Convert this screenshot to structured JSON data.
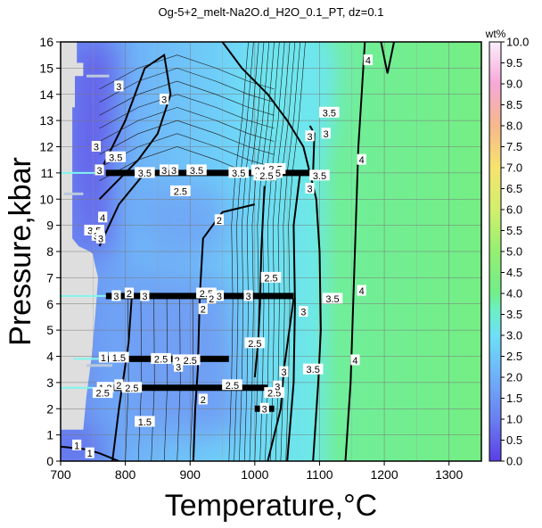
{
  "chart_data": {
    "type": "heatmap",
    "title": "Og-5+2_melt-Na2O.d_H2O_0.1_PT, dz=0.1",
    "xlabel": "Temperature,°C",
    "ylabel": "Pressure,kbar",
    "xlim": [
      700,
      1350
    ],
    "ylim": [
      0,
      16
    ],
    "x_ticks": [
      700,
      800,
      900,
      1000,
      1100,
      1200,
      1300
    ],
    "y_ticks": [
      0,
      1,
      2,
      3,
      4,
      5,
      6,
      7,
      8,
      9,
      10,
      11,
      12,
      13,
      14,
      15,
      16
    ],
    "colorbar": {
      "label": "wt%",
      "range": [
        0.0,
        10.0
      ],
      "ticks": [
        "0.0",
        "0.5",
        "1.0",
        "1.5",
        "2.0",
        "2.5",
        "3.0",
        "3.5",
        "4.0",
        "4.5",
        "5.0",
        "5.5",
        "6.0",
        "6.5",
        "7.0",
        "7.5",
        "8.0",
        "8.5",
        "9.0",
        "9.5",
        "10.0"
      ],
      "stops": [
        {
          "v": 0.0,
          "color": "#5b3fe6"
        },
        {
          "v": 1.0,
          "color": "#6a7ff0"
        },
        {
          "v": 2.0,
          "color": "#6fb0f8"
        },
        {
          "v": 3.0,
          "color": "#6ee0f6"
        },
        {
          "v": 3.6,
          "color": "#6cefc4"
        },
        {
          "v": 4.0,
          "color": "#72ee8a"
        },
        {
          "v": 5.0,
          "color": "#95ef72"
        },
        {
          "v": 6.0,
          "color": "#d2ef6e"
        },
        {
          "v": 7.0,
          "color": "#f6e36e"
        },
        {
          "v": 8.0,
          "color": "#f6b88c"
        },
        {
          "v": 9.0,
          "color": "#f6a8d6"
        },
        {
          "v": 10.0,
          "color": "#fbeefc"
        }
      ]
    },
    "grid": true,
    "contour_labels": [
      {
        "x": 725,
        "y": 0.6,
        "text": "1"
      },
      {
        "x": 790,
        "y": 14.3,
        "text": "3"
      },
      {
        "x": 860,
        "y": 13.8,
        "text": "3"
      },
      {
        "x": 755,
        "y": 12.0,
        "text": "3"
      },
      {
        "x": 785,
        "y": 11.6,
        "text": "3.5"
      },
      {
        "x": 760,
        "y": 11.1,
        "text": "3"
      },
      {
        "x": 830,
        "y": 11.0,
        "text": "3.5"
      },
      {
        "x": 860,
        "y": 11.1,
        "text": "3"
      },
      {
        "x": 875,
        "y": 11.1,
        "text": "3"
      },
      {
        "x": 910,
        "y": 11.1,
        "text": "3.5"
      },
      {
        "x": 885,
        "y": 10.3,
        "text": "2.5"
      },
      {
        "x": 975,
        "y": 11.0,
        "text": "3.5"
      },
      {
        "x": 1010,
        "y": 11.1,
        "text": "2.5"
      },
      {
        "x": 1022,
        "y": 11.15,
        "text": "2"
      },
      {
        "x": 1032,
        "y": 11.15,
        "text": "2.5"
      },
      {
        "x": 1005,
        "y": 10.9,
        "text": "3"
      },
      {
        "x": 1018,
        "y": 10.9,
        "text": "2.5"
      },
      {
        "x": 1036,
        "y": 11.0,
        "text": "5"
      },
      {
        "x": 1100,
        "y": 10.9,
        "text": "3.5"
      },
      {
        "x": 1085,
        "y": 10.4,
        "text": "3"
      },
      {
        "x": 1085,
        "y": 12.4,
        "text": "3"
      },
      {
        "x": 1110,
        "y": 12.5,
        "text": "3"
      },
      {
        "x": 1115,
        "y": 13.3,
        "text": "3.5"
      },
      {
        "x": 1165,
        "y": 11.5,
        "text": "4"
      },
      {
        "x": 1175,
        "y": 15.3,
        "text": "4"
      },
      {
        "x": 765,
        "y": 9.3,
        "text": "4"
      },
      {
        "x": 752,
        "y": 8.8,
        "text": "3.5"
      },
      {
        "x": 755,
        "y": 8.6,
        "text": "3"
      },
      {
        "x": 762,
        "y": 8.5,
        "text": "3"
      },
      {
        "x": 945,
        "y": 9.2,
        "text": "2"
      },
      {
        "x": 920,
        "y": 5.8,
        "text": "2"
      },
      {
        "x": 1025,
        "y": 7.0,
        "text": "2.5"
      },
      {
        "x": 1075,
        "y": 5.7,
        "text": "3"
      },
      {
        "x": 1120,
        "y": 6.2,
        "text": "3.5"
      },
      {
        "x": 1165,
        "y": 6.5,
        "text": "4"
      },
      {
        "x": 786,
        "y": 6.3,
        "text": "3"
      },
      {
        "x": 806,
        "y": 6.4,
        "text": "2"
      },
      {
        "x": 830,
        "y": 6.3,
        "text": "3"
      },
      {
        "x": 925,
        "y": 6.4,
        "text": "2.5"
      },
      {
        "x": 933,
        "y": 6.2,
        "text": "2"
      },
      {
        "x": 945,
        "y": 6.3,
        "text": "3"
      },
      {
        "x": 990,
        "y": 6.3,
        "text": "3"
      },
      {
        "x": 1000,
        "y": 4.5,
        "text": "2.5"
      },
      {
        "x": 766,
        "y": 3.95,
        "text": "1"
      },
      {
        "x": 790,
        "y": 3.95,
        "text": "1.5"
      },
      {
        "x": 855,
        "y": 3.9,
        "text": "2.5"
      },
      {
        "x": 880,
        "y": 3.85,
        "text": "2"
      },
      {
        "x": 882,
        "y": 3.6,
        "text": "3"
      },
      {
        "x": 900,
        "y": 3.85,
        "text": "2.5"
      },
      {
        "x": 1045,
        "y": 3.4,
        "text": "3"
      },
      {
        "x": 1090,
        "y": 3.5,
        "text": "3.5"
      },
      {
        "x": 1155,
        "y": 3.85,
        "text": "4"
      },
      {
        "x": 763,
        "y": 2.8,
        "text": "1"
      },
      {
        "x": 775,
        "y": 2.8,
        "text": "2"
      },
      {
        "x": 790,
        "y": 2.9,
        "text": "2"
      },
      {
        "x": 810,
        "y": 2.8,
        "text": "2.5"
      },
      {
        "x": 765,
        "y": 2.6,
        "text": "2.5"
      },
      {
        "x": 920,
        "y": 2.35,
        "text": "2"
      },
      {
        "x": 965,
        "y": 2.9,
        "text": "2.5"
      },
      {
        "x": 1030,
        "y": 2.6,
        "text": "2.5"
      },
      {
        "x": 1035,
        "y": 2.85,
        "text": "3"
      },
      {
        "x": 1015,
        "y": 2.0,
        "text": "3"
      },
      {
        "x": 830,
        "y": 1.5,
        "text": "1.5"
      },
      {
        "x": 745,
        "y": 0.3,
        "text": "1"
      }
    ]
  }
}
